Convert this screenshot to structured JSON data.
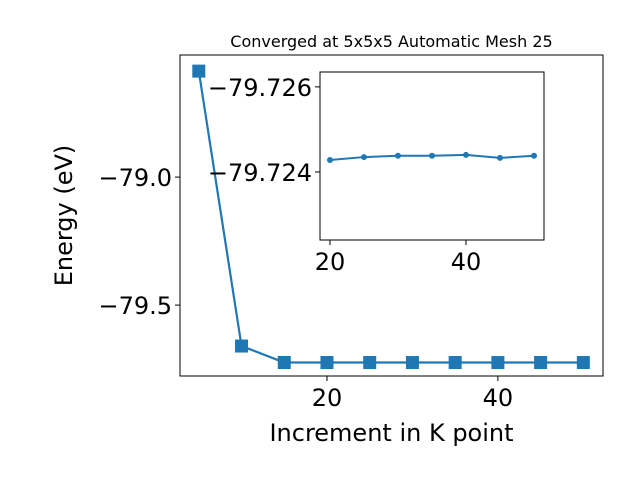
{
  "chart_data": [
    {
      "type": "line",
      "title": "Converged at 5x5x5 Automatic Mesh 25",
      "xlabel": "Increment in K point",
      "ylabel": "Energy (eV)",
      "x": [
        5,
        10,
        15,
        20,
        25,
        30,
        35,
        40,
        45,
        50
      ],
      "series": [
        {
          "color": "#1f77b4",
          "marker": "square",
          "values": [
            -78.586,
            -79.66,
            -79.7243,
            -79.72428,
            -79.72435,
            -79.72438,
            -79.72438,
            -79.7244,
            -79.72433,
            -79.72438
          ]
        }
      ],
      "xlim": [
        2.8,
        52.3
      ],
      "ylim": [
        -79.777,
        -78.523
      ],
      "xticks": [
        20,
        40
      ],
      "yticks": [
        {
          "value": -79.0,
          "label": "−79.0"
        },
        {
          "value": -79.5,
          "label": "−79.5"
        }
      ]
    },
    {
      "type": "line",
      "x": [
        20,
        25,
        30,
        35,
        40,
        45,
        50
      ],
      "series": [
        {
          "color": "#1f77b4",
          "marker": "circle",
          "values": [
            -79.72428,
            -79.72435,
            -79.72438,
            -79.72438,
            -79.7244,
            -79.72433,
            -79.72438
          ]
        }
      ],
      "xlim": [
        18.53,
        51.47
      ],
      "ylim": [
        -79.7224,
        -79.72635
      ],
      "xticks": [
        20,
        40
      ],
      "yticks": [
        {
          "value": -79.726,
          "label": "−79.726"
        },
        {
          "value": -79.724,
          "label": "−79.724"
        }
      ]
    }
  ]
}
